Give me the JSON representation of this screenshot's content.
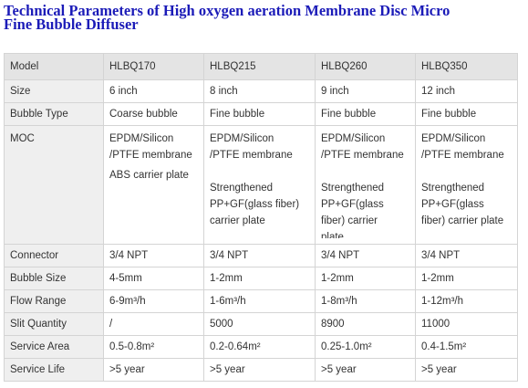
{
  "title": {
    "line1": "Technical Parameters of High oxygen aeration Membrane Disc Micro",
    "line2": "Fine Bubble Diffuser"
  },
  "table": {
    "headers": [
      "Model",
      "HLBQ170",
      "HLBQ215",
      "HLBQ260",
      "HLBQ350"
    ],
    "size": {
      "label": "Size",
      "values": [
        "6 inch",
        "8 inch",
        "9 inch",
        "12 inch"
      ]
    },
    "bubble_type": {
      "label": "Bubble Type",
      "values": [
        "Coarse bubble",
        "Fine bubble",
        "Fine bubble",
        "Fine bubble"
      ]
    },
    "moc": {
      "label": "MOC",
      "c1": {
        "l1": "EPDM/Silicon",
        "l2": "/PTFE membrane",
        "l3": "ABS carrier plate"
      },
      "c2": {
        "l1": "EPDM/Silicon",
        "l2": "/PTFE membrane",
        "l3": "Strengthened",
        "l4": "PP+GF(glass fiber)",
        "l5": "carrier plate"
      },
      "c3": {
        "l1": "EPDM/Silicon",
        "l2": "/PTFE membrane",
        "l3": "Strengthened",
        "l4": "PP+GF(glass",
        "l5": "fiber) carrier",
        "l6": "plate"
      },
      "c4": {
        "l1": "EPDM/Silicon",
        "l2": "/PTFE membrane",
        "l3": "Strengthened",
        "l4": "PP+GF(glass",
        "l5": "fiber) carrier plate"
      }
    },
    "connector": {
      "label": "Connector",
      "values": [
        "3/4 NPT",
        "3/4 NPT",
        "3/4 NPT",
        "3/4 NPT"
      ]
    },
    "bubble_size": {
      "label": "Bubble Size",
      "values": [
        "4-5mm",
        "1-2mm",
        "1-2mm",
        "1-2mm"
      ]
    },
    "flow_range": {
      "label": "Flow Range",
      "values": [
        "6-9m³/h",
        "1-6m³/h",
        "1-8m³/h",
        "1-12m³/h"
      ]
    },
    "slit_quantity": {
      "label": "Slit Quantity",
      "values": [
        "/",
        "5000",
        "8900",
        "11000"
      ]
    },
    "service_area": {
      "label": "Service Area",
      "values": [
        "0.5-0.8m²",
        "0.2-0.64m²",
        "0.25-1.0m²",
        "0.4-1.5m²"
      ]
    },
    "service_life": {
      "label": "Service Life",
      "values": [
        ">5 year",
        ">5 year",
        ">5 year",
        ">5 year"
      ]
    }
  }
}
